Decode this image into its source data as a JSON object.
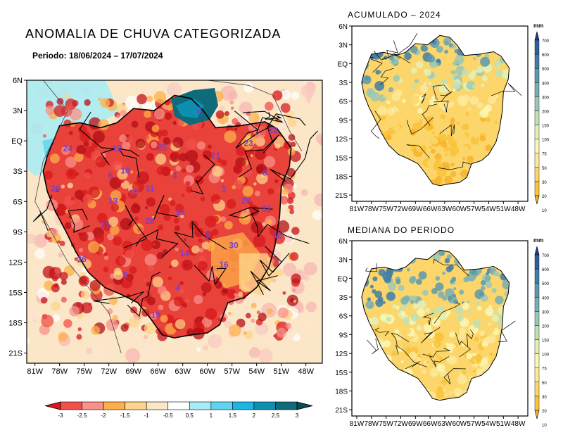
{
  "main_map": {
    "title": "ANOMALIA DE CHUVA CATEGORIZADA",
    "period": "Periodo: 18/06/2024 – 17/07/2024",
    "lat_labels": [
      "6N",
      "3N",
      "EQ",
      "3S",
      "6S",
      "9S",
      "12S",
      "15S",
      "18S",
      "21S"
    ],
    "lon_labels": [
      "81W",
      "78W",
      "75W",
      "72W",
      "69W",
      "66W",
      "63W",
      "60W",
      "57W",
      "54W",
      "51W",
      "48W"
    ],
    "basin_numbers": [
      {
        "id": "2",
        "lat": 3.0,
        "lon": -61.0
      },
      {
        "id": "22",
        "lat": 1.0,
        "lon": -52.0
      },
      {
        "id": "23",
        "lat": -0.3,
        "lon": -55.0
      },
      {
        "id": "21",
        "lat": -1.5,
        "lon": -59.0
      },
      {
        "id": "25",
        "lat": -0.7,
        "lon": -65.5
      },
      {
        "id": "12",
        "lat": -0.8,
        "lon": -71.0
      },
      {
        "id": "24",
        "lat": -0.8,
        "lon": -77.0
      },
      {
        "id": "10",
        "lat": -3.0,
        "lon": -70.0
      },
      {
        "id": "6",
        "lat": -3.5,
        "lon": -71.8
      },
      {
        "id": "3",
        "lat": -3.5,
        "lon": -64.0
      },
      {
        "id": "8",
        "lat": -3.2,
        "lon": -53.0
      },
      {
        "id": "20",
        "lat": -4.8,
        "lon": -78.5
      },
      {
        "id": "17",
        "lat": -5.2,
        "lon": -69.0
      },
      {
        "id": "11",
        "lat": -4.8,
        "lon": -67.0
      },
      {
        "id": "1",
        "lat": -4.8,
        "lon": -58.0
      },
      {
        "id": "29",
        "lat": -6.0,
        "lon": -55.3
      },
      {
        "id": "13",
        "lat": -6.0,
        "lon": -71.5
      },
      {
        "id": "31",
        "lat": -6.8,
        "lon": -52.8
      },
      {
        "id": "18",
        "lat": -7.1,
        "lon": -63.3
      },
      {
        "id": "28",
        "lat": -8.0,
        "lon": -67.0
      },
      {
        "id": "33",
        "lat": -8.4,
        "lon": -72.5
      },
      {
        "id": "9",
        "lat": -9.4,
        "lon": -60.0
      },
      {
        "id": "32",
        "lat": -9.4,
        "lon": -51.5
      },
      {
        "id": "30",
        "lat": -10.4,
        "lon": -56.8
      },
      {
        "id": "14",
        "lat": -11.2,
        "lon": -62.8
      },
      {
        "id": "16",
        "lat": -12.3,
        "lon": -58.0
      },
      {
        "id": "26",
        "lat": -11.8,
        "lon": -75.3
      },
      {
        "id": "5",
        "lat": -13.3,
        "lon": -70.0
      },
      {
        "id": "4",
        "lat": -14.6,
        "lon": -63.6
      },
      {
        "id": "19",
        "lat": -17.3,
        "lon": -66.3
      }
    ],
    "colorbar": {
      "labels": [
        "-3",
        "-2.5",
        "-2",
        "-1.5",
        "-1",
        "-0.5",
        "0.5",
        "1",
        "1.5",
        "2",
        "2.5",
        "3"
      ],
      "colors": [
        "#d7191c",
        "#f0504a",
        "#f9908a",
        "#fdb04a",
        "#fed38a",
        "#fbe7c8",
        "#ffffff",
        "#a6ecf6",
        "#5fd3ef",
        "#1bb6e3",
        "#0d8fb0",
        "#0f6a7a",
        "#0b4a57"
      ]
    }
  },
  "acumulado": {
    "title": "ACUMULADO – 2024",
    "lat_labels": [
      "6N",
      "3N",
      "EQ",
      "3S",
      "6S",
      "9S",
      "12S",
      "15S",
      "18S",
      "21S"
    ],
    "lon_labels": [
      "81W",
      "78W",
      "75W",
      "72W",
      "69W",
      "66W",
      "63W",
      "60W",
      "57W",
      "54W",
      "51W",
      "48W"
    ],
    "unit": "mm",
    "colorbar_labels": [
      "700",
      "600",
      "500",
      "400",
      "300",
      "200",
      "150",
      "100",
      "75",
      "50",
      "30",
      "20",
      "10"
    ]
  },
  "mediana": {
    "title": "MEDIANA DO PERIODO",
    "lat_labels": [
      "6N",
      "3N",
      "EQ",
      "3S",
      "6S",
      "9S",
      "12S",
      "15S",
      "18S",
      "21S"
    ],
    "lon_labels": [
      "81W",
      "78W",
      "75W",
      "72W",
      "69W",
      "66W",
      "63W",
      "60W",
      "57W",
      "54W",
      "51W",
      "48W"
    ],
    "unit": "mm",
    "colorbar_labels": [
      "700",
      "600",
      "500",
      "400",
      "300",
      "200",
      "150",
      "100",
      "75",
      "50",
      "30",
      "20",
      "10"
    ]
  },
  "colors": {
    "scale_mm": [
      "#1f3e8f",
      "#2f5f9a",
      "#3f7ea6",
      "#5b98ae",
      "#76aeb3",
      "#9cc8b5",
      "#c1e0b3",
      "#e3f1b6",
      "#fbf7b5",
      "#fde99a",
      "#fcd66a",
      "#f9c33b",
      "#f7b32c"
    ]
  }
}
